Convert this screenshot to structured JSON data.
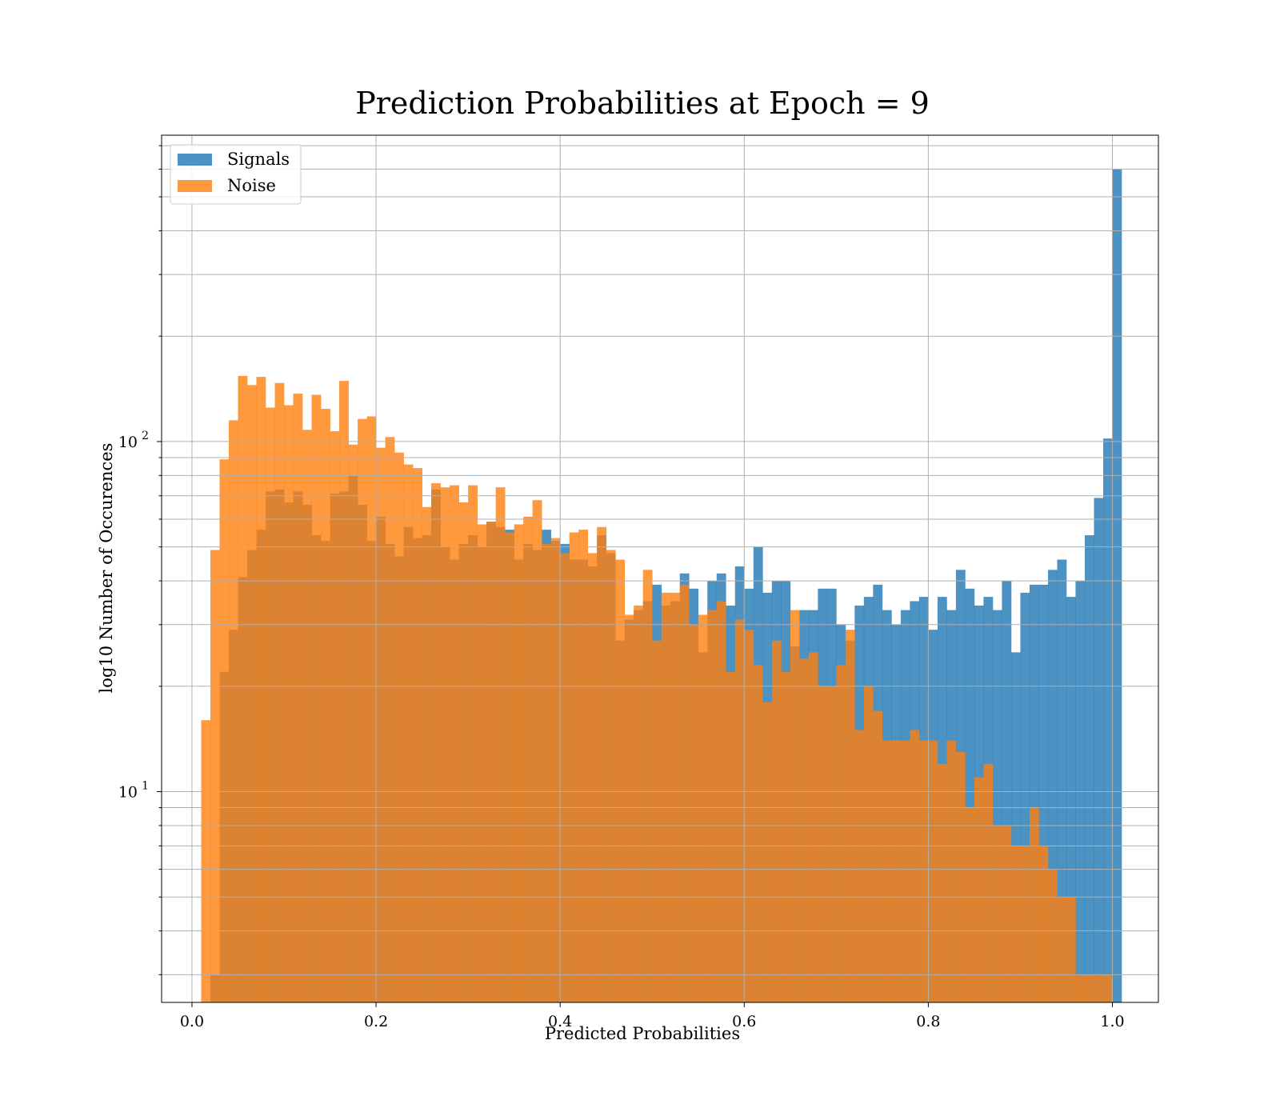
{
  "chart_data": {
    "type": "bar",
    "title": "Prediction Probabilities at Epoch = 9",
    "xlabel": "Predicted Probabilities",
    "ylabel": "log10 Number of Occurences",
    "y_scale": "log",
    "xlim": [
      -0.033,
      1.05
    ],
    "ylim": [
      2.5,
      750
    ],
    "grid": true,
    "legend_position": "top-left",
    "x_ticks": [
      {
        "value": 0.0,
        "label": "0.0"
      },
      {
        "value": 0.2,
        "label": "0.2"
      },
      {
        "value": 0.4,
        "label": "0.4"
      },
      {
        "value": 0.6,
        "label": "0.6"
      },
      {
        "value": 0.8,
        "label": "0.8"
      },
      {
        "value": 1.0,
        "label": "1.0"
      }
    ],
    "y_ticks": [
      {
        "value": 10,
        "base": "10",
        "exp": "1"
      },
      {
        "value": 100,
        "base": "10",
        "exp": "2"
      }
    ],
    "bin_start": 0.0,
    "bin_width": 0.01,
    "series": [
      {
        "name": "Signals",
        "color": "#1f77b4",
        "values": [
          0,
          0,
          3,
          22,
          29,
          41,
          49,
          56,
          72,
          73,
          67,
          72,
          66,
          54,
          52,
          71,
          72,
          80,
          66,
          52,
          61,
          51,
          47,
          57,
          53,
          54,
          73,
          50,
          46,
          51,
          54,
          50,
          59,
          57,
          56,
          46,
          51,
          49,
          56,
          52,
          51,
          46,
          46,
          44,
          54,
          48,
          27,
          31,
          33,
          35,
          39,
          34,
          35,
          42,
          38,
          25,
          40,
          42,
          34,
          44,
          38,
          50,
          37,
          40,
          40,
          26,
          33,
          33,
          38,
          38,
          30,
          27,
          34,
          36,
          39,
          33,
          30,
          33,
          35,
          36,
          29,
          36,
          33,
          43,
          38,
          34,
          36,
          33,
          40,
          25,
          37,
          39,
          39,
          43,
          46,
          36,
          40,
          54,
          69,
          102,
          600
        ]
      },
      {
        "name": "Noise",
        "color": "#ff7f0e",
        "values": [
          0,
          16,
          49,
          89,
          115,
          154,
          145,
          153,
          125,
          147,
          127,
          137,
          108,
          136,
          124,
          107,
          149,
          98,
          116,
          118,
          96,
          103,
          93,
          86,
          84,
          65,
          76,
          74,
          75,
          67,
          75,
          58,
          59,
          74,
          55,
          58,
          61,
          68,
          51,
          53,
          48,
          55,
          56,
          48,
          57,
          49,
          46,
          32,
          34,
          43,
          27,
          37,
          37,
          39,
          30,
          32,
          33,
          35,
          22,
          31,
          29,
          23,
          18,
          27,
          22,
          33,
          24,
          25,
          20,
          20,
          23,
          29,
          15,
          20,
          17,
          14,
          14,
          14,
          15,
          14,
          14,
          12,
          14,
          13,
          9,
          11,
          12,
          8,
          8,
          7,
          7,
          9,
          7,
          6,
          5,
          5,
          3,
          3,
          3,
          3,
          0
        ]
      }
    ]
  }
}
